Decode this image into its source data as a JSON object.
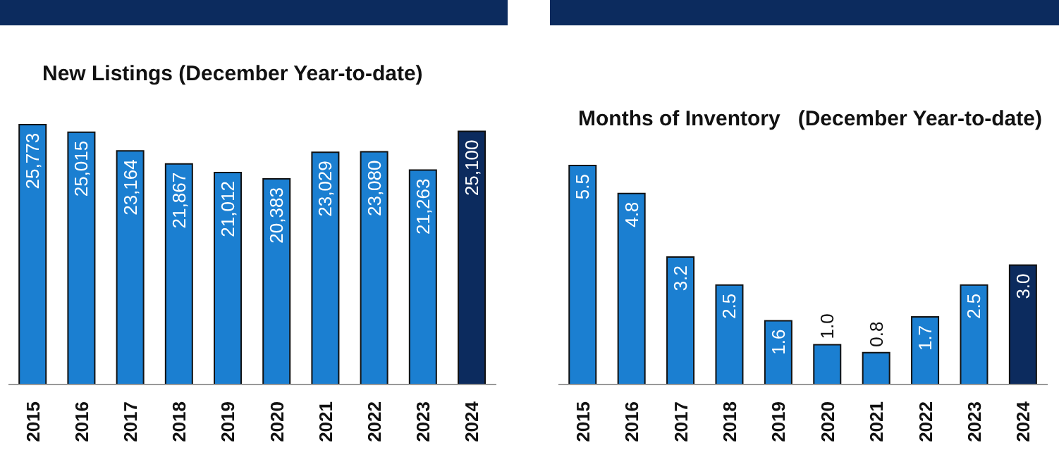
{
  "chart_data": [
    {
      "type": "bar",
      "title": "New Listings (December Year-to-date)",
      "categories": [
        "2015",
        "2016",
        "2017",
        "2018",
        "2019",
        "2020",
        "2021",
        "2022",
        "2023",
        "2024"
      ],
      "values": [
        25773,
        25015,
        23164,
        21867,
        21012,
        20383,
        23029,
        23080,
        21263,
        25100
      ],
      "colors": [
        "#1b7fd1",
        "#1b7fd1",
        "#1b7fd1",
        "#1b7fd1",
        "#1b7fd1",
        "#1b7fd1",
        "#1b7fd1",
        "#1b7fd1",
        "#1b7fd1",
        "#0c2b5e"
      ],
      "value_labels": [
        "25,773",
        "25,015",
        "23,164",
        "21,867",
        "21,012",
        "20,383",
        "23,029",
        "23,080",
        "21,263",
        "25,100"
      ]
    },
    {
      "type": "bar",
      "title": "Months of Inventory   (December Year-to-date)",
      "categories": [
        "2015",
        "2016",
        "2017",
        "2018",
        "2019",
        "2020",
        "2021",
        "2022",
        "2023",
        "2024"
      ],
      "values": [
        5.5,
        4.8,
        3.2,
        2.5,
        1.6,
        1.0,
        0.8,
        1.7,
        2.5,
        3.0
      ],
      "colors": [
        "#1b7fd1",
        "#1b7fd1",
        "#1b7fd1",
        "#1b7fd1",
        "#1b7fd1",
        "#1b7fd1",
        "#1b7fd1",
        "#1b7fd1",
        "#1b7fd1",
        "#0c2b5e"
      ],
      "value_labels": [
        "5.5",
        "4.8",
        "3.2",
        "2.5",
        "1.6",
        "1.0",
        "0.8",
        "1.7",
        "2.5",
        "3.0"
      ]
    }
  ]
}
